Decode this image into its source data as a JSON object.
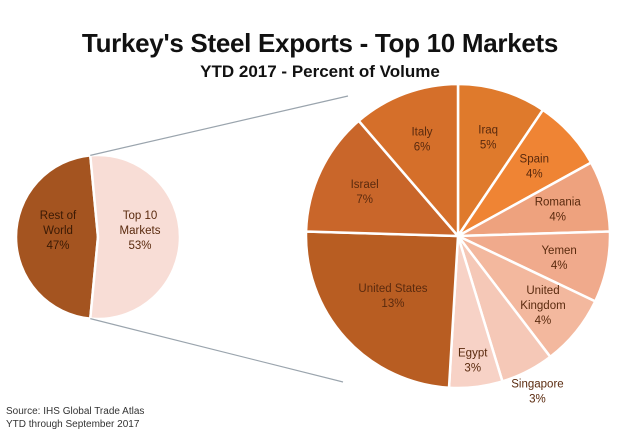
{
  "chart_data": {
    "type": "pie",
    "title": "Turkey's Steel Exports - Top 10 Markets",
    "subtitle": "YTD 2017 - Percent of Volume",
    "main_pie": [
      {
        "label": "Rest of World",
        "value": 47,
        "display": "47%",
        "color": "#a45420"
      },
      {
        "label": "Top 10 Markets",
        "value": 53,
        "display": "53%",
        "color": "#f8ddd6"
      }
    ],
    "breakout_pie": [
      {
        "label": "Iraq",
        "value": 5,
        "display": "5%",
        "color": "#df7a2c"
      },
      {
        "label": "Spain",
        "value": 4,
        "display": "4%",
        "color": "#ef8434"
      },
      {
        "label": "Romania",
        "value": 4,
        "display": "4%",
        "color": "#eea27e"
      },
      {
        "label": "Yemen",
        "value": 4,
        "display": "4%",
        "color": "#f0aa8c"
      },
      {
        "label": "United Kingdom",
        "value": 4,
        "display": "4%",
        "color": "#f3b89e"
      },
      {
        "label": "Singapore",
        "value": 3,
        "display": "3%",
        "color": "#f5c8b7"
      },
      {
        "label": "Egypt",
        "value": 3,
        "display": "3%",
        "color": "#f7d2c6"
      },
      {
        "label": "United States",
        "value": 13,
        "display": "13%",
        "color": "#b85d22"
      },
      {
        "label": "Israel",
        "value": 7,
        "display": "7%",
        "color": "#c9662a"
      },
      {
        "label": "Italy",
        "value": 6,
        "display": "6%",
        "color": "#d56f2a"
      }
    ]
  },
  "footer": {
    "source": "Source: IHS Global Trade Atlas",
    "note": "YTD through September 2017"
  }
}
